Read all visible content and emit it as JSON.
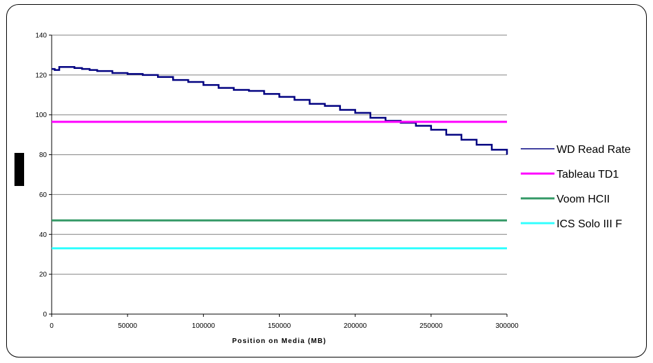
{
  "chart_data": {
    "type": "line",
    "title": "",
    "xlabel": "Position on Media (MB)",
    "ylabel": "",
    "xlim": [
      0,
      300000
    ],
    "ylim": [
      0,
      140
    ],
    "xticks": [
      0,
      50000,
      100000,
      150000,
      200000,
      250000,
      300000
    ],
    "yticks": [
      0,
      20,
      40,
      60,
      80,
      100,
      120,
      140
    ],
    "grid": "horizontal",
    "legend_position": "right",
    "series": [
      {
        "name": "WD Read Rate",
        "color": "#000080",
        "line_width": "thin",
        "x": [
          0,
          2000,
          5000,
          10000,
          15000,
          20000,
          25000,
          30000,
          40000,
          50000,
          60000,
          70000,
          80000,
          90000,
          100000,
          110000,
          120000,
          130000,
          140000,
          150000,
          160000,
          170000,
          180000,
          190000,
          200000,
          210000,
          220000,
          230000,
          240000,
          250000,
          260000,
          270000,
          280000,
          290000,
          300000
        ],
        "y": [
          123,
          122.5,
          124,
          124,
          123.5,
          123,
          122.5,
          122,
          121,
          120.5,
          120,
          119,
          117.5,
          116.5,
          115,
          113.5,
          112.5,
          112,
          110.5,
          109,
          107.5,
          105.5,
          104.5,
          102.5,
          101,
          98.5,
          97,
          96,
          94.5,
          92.5,
          90,
          87.5,
          85,
          82.5,
          80
        ]
      },
      {
        "name": "Tableau TD1",
        "color": "#FF00FF",
        "line_width": "thick",
        "x": [
          0,
          300000
        ],
        "y": [
          96.5,
          96.5
        ]
      },
      {
        "name": "Voom HCII",
        "color": "#339966",
        "line_width": "thick",
        "x": [
          0,
          300000
        ],
        "y": [
          47,
          47
        ]
      },
      {
        "name": "ICS Solo III F",
        "color": "#33FFFF",
        "line_width": "thick",
        "x": [
          0,
          300000
        ],
        "y": [
          33,
          33
        ]
      }
    ]
  }
}
